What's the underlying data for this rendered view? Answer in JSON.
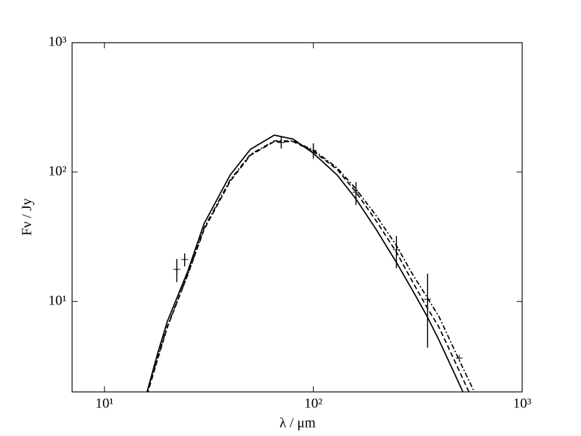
{
  "chart_data": {
    "type": "sed",
    "xlabel": "λ / μm",
    "ylabel": "Fν / Jy",
    "xscale": "log",
    "yscale": "log",
    "xlim": [
      7,
      1000
    ],
    "ylim": [
      2,
      1000
    ],
    "xticks": [
      {
        "value": 10,
        "label": "10¹"
      },
      {
        "value": 100,
        "label": "10²"
      },
      {
        "value": 1000,
        "label": "10³"
      }
    ],
    "yticks": [
      {
        "value": 10,
        "label": "10¹"
      },
      {
        "value": 100,
        "label": "10²"
      },
      {
        "value": 1000,
        "label": "10³"
      }
    ],
    "points": {
      "color": "#000000",
      "x": [
        22.2,
        24.2,
        70.2,
        100,
        160,
        250,
        352,
        500
      ],
      "values": [
        17.7,
        21.1,
        169,
        147,
        69.7,
        25.1,
        10.4,
        3.65
      ],
      "errors": [
        3.6,
        2.4,
        17,
        20,
        14,
        7,
        6,
        null
      ]
    },
    "series": [
      {
        "color": "#000000",
        "style": "solid",
        "x": [
          16,
          18,
          20,
          25,
          30,
          40,
          50,
          65,
          80,
          100,
          130,
          160,
          200,
          250,
          300,
          350,
          400,
          500,
          520
        ],
        "values": [
          2.0,
          4.0,
          7.0,
          17,
          40,
          95,
          150,
          193,
          180,
          140,
          95,
          62,
          36,
          20,
          12,
          7.7,
          5.0,
          2.3,
          2.0
        ]
      },
      {
        "color": "#000000",
        "style": "dashed",
        "x": [
          16,
          18,
          20,
          25,
          30,
          40,
          50,
          65,
          80,
          100,
          130,
          160,
          200,
          250,
          300,
          350,
          400,
          500,
          556
        ],
        "values": [
          1.9,
          3.6,
          6.3,
          16,
          36,
          85,
          135,
          172,
          172,
          145,
          105,
          70,
          42,
          24,
          14,
          9.0,
          6.3,
          2.9,
          2.0
        ]
      },
      {
        "color": "#000000",
        "style": "dashdot",
        "x": [
          16,
          18,
          20,
          25,
          30,
          40,
          50,
          65,
          80,
          100,
          130,
          160,
          200,
          250,
          300,
          350,
          400,
          500,
          590
        ],
        "values": [
          2.0,
          3.7,
          6.4,
          16,
          37,
          87,
          137,
          174,
          174,
          148,
          108,
          74,
          46,
          27,
          16,
          10.8,
          7.6,
          3.5,
          2.0
        ]
      }
    ]
  }
}
